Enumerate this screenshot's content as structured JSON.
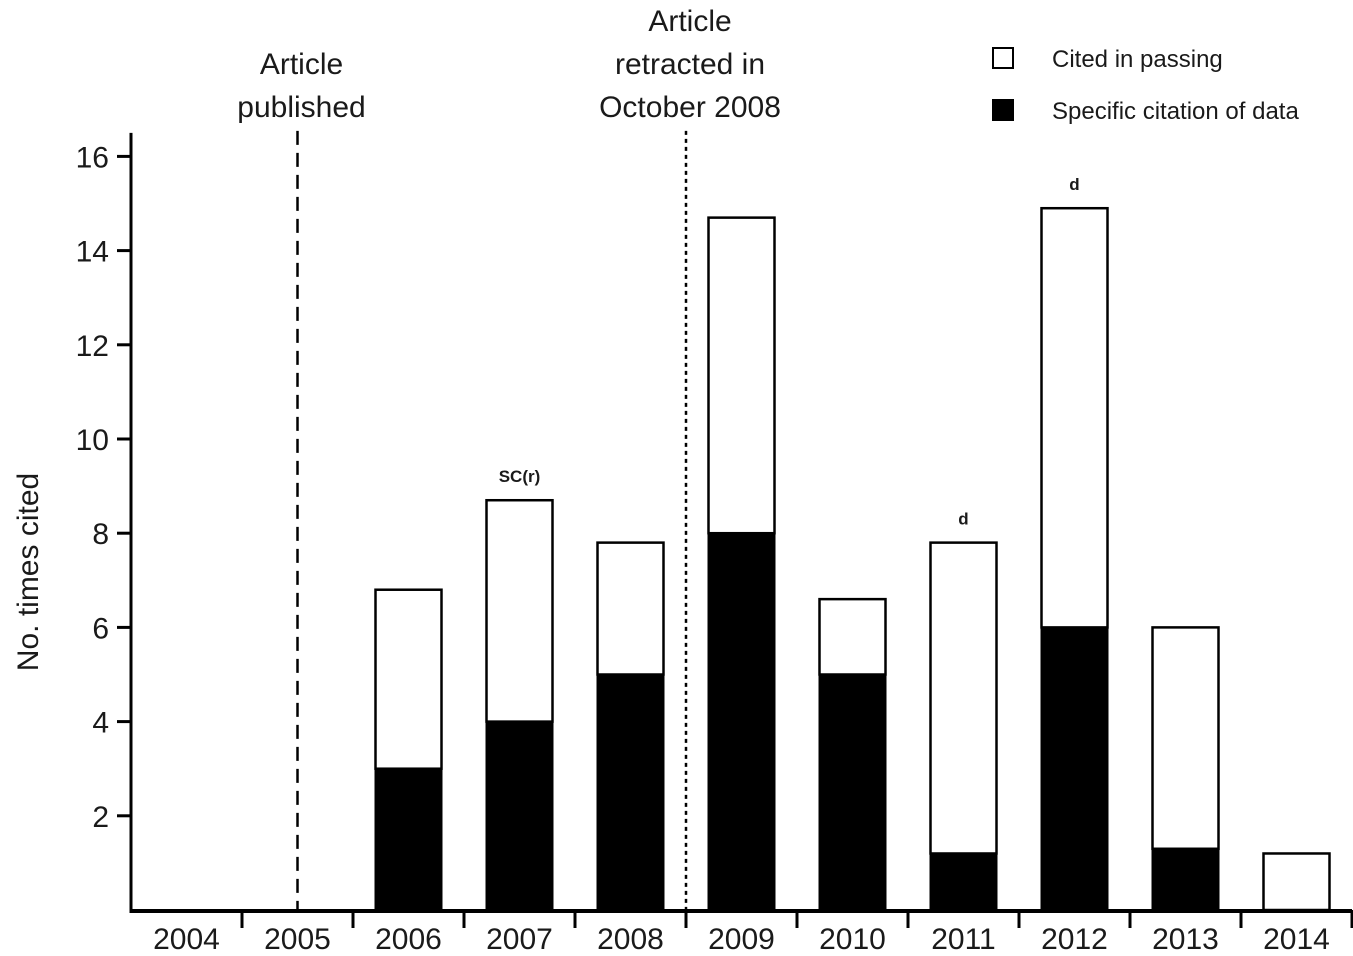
{
  "chart_data": {
    "type": "bar",
    "stacked": true,
    "categories": [
      "2004",
      "2005",
      "2006",
      "2007",
      "2008",
      "2009",
      "2010",
      "2011",
      "2012",
      "2013",
      "2014"
    ],
    "series": [
      {
        "name": "Specific citation of data",
        "values": [
          0,
          0,
          3,
          4,
          5,
          8,
          5,
          1.2,
          6,
          1.3,
          0
        ],
        "color": "#000000"
      },
      {
        "name": "Cited in passing",
        "values": [
          0,
          0,
          3.8,
          4.7,
          2.8,
          6.7,
          1.6,
          6.6,
          8.9,
          4.7,
          1.2
        ],
        "color": "#ffffff"
      }
    ],
    "ylabel": "No. times cited",
    "xlabel": "",
    "yticks": [
      "2",
      "4",
      "6",
      "8",
      "10",
      "12",
      "14",
      "16"
    ],
    "ylim": [
      0,
      16.5
    ],
    "legend": {
      "position": "top-right"
    },
    "markers": [
      {
        "label_lines": [
          "Article",
          "published"
        ],
        "at": "2005",
        "style": "dashed"
      },
      {
        "label_lines": [
          "Article",
          "retracted in",
          "October 2008"
        ],
        "at": "between 2008 and 2009",
        "style": "dotted"
      }
    ],
    "bar_annotations": [
      {
        "category": "2007",
        "text": "SC(r)"
      },
      {
        "category": "2011",
        "text": "d"
      },
      {
        "category": "2012",
        "text": "d"
      }
    ]
  }
}
